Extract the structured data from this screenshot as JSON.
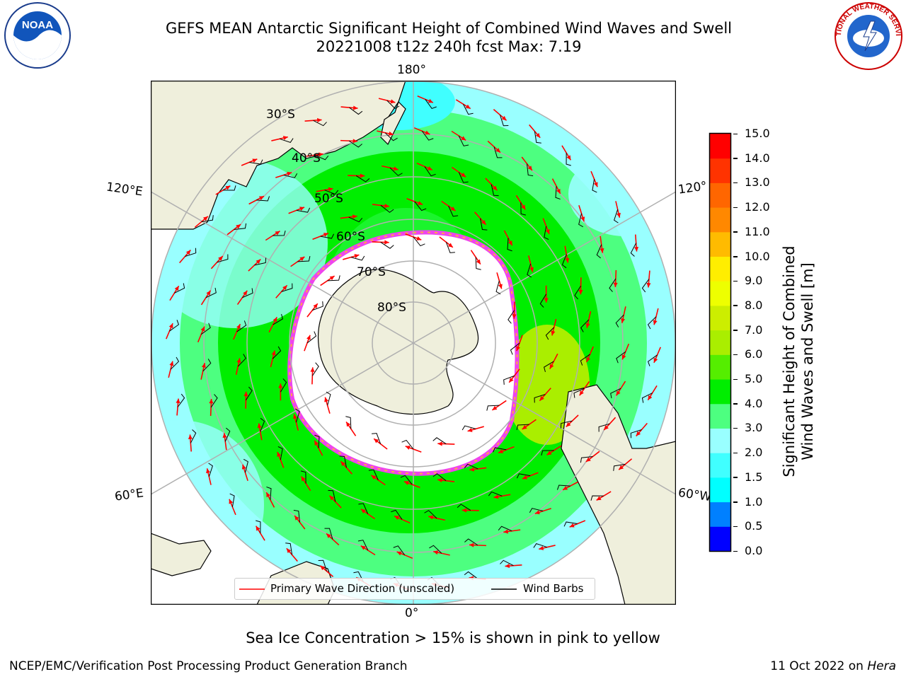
{
  "header": {
    "title_line1": "GEFS MEAN Antarctic Significant Height of Combined Wind Waves and Swell",
    "title_line2": "20221008 t12z 240h fcst   Max: 7.19"
  },
  "logos": {
    "left": {
      "name": "noaa-logo",
      "text": "NOAA"
    },
    "right": {
      "name": "national-weather-service-logo",
      "text": "NATIONAL WEATHER SERVICE"
    }
  },
  "map": {
    "projection": "south-polar-stereographic",
    "lon_labels": {
      "top": "180°",
      "bottom": "0°",
      "left_upper": "120°E",
      "left_lower": "60°E",
      "right_upper": "120°",
      "right_lower": "60°W"
    },
    "lat_labels": [
      "30°S",
      "40°S",
      "50°S",
      "60°S",
      "70°S",
      "80°S"
    ],
    "colors": {
      "land": "#efefdc",
      "ocean_low": "#99ffff",
      "ocean_mid": "#4dff80",
      "ocean_high": "#00ee00",
      "ice": "#ffffff",
      "ice_edge": "#ee44ee",
      "grid": "#b0b0b0"
    }
  },
  "legend": {
    "wave_direction_label": "Primary Wave Direction (unscaled)",
    "wind_barbs_label": "Wind Barbs",
    "wave_color": "#ff0000",
    "barb_color": "#000000"
  },
  "colorbar": {
    "label_line1": "Significant Height of Combined",
    "label_line2": "Wind Waves and Swell [m]",
    "ticks": [
      "0.0",
      "0.5",
      "1.0",
      "1.5",
      "2.0",
      "3.0",
      "4.0",
      "5.0",
      "6.0",
      "7.0",
      "8.0",
      "9.0",
      "10.0",
      "11.0",
      "12.0",
      "13.0",
      "14.0",
      "15.0"
    ],
    "colors": [
      "#0000ff",
      "#0080ff",
      "#00ffff",
      "#40ffff",
      "#99ffff",
      "#4dff80",
      "#00ee00",
      "#55ee00",
      "#aaee00",
      "#ccee00",
      "#eeff00",
      "#ffee00",
      "#ffbb00",
      "#ff8800",
      "#ff6600",
      "#ff3300",
      "#ff0000"
    ]
  },
  "caption": "Sea Ice Concentration > 15% is shown in pink to yellow",
  "footer": {
    "left": "NCEP/EMC/Verification Post Processing Product Generation Branch",
    "right_date": "11 Oct 2022 on ",
    "right_host": "Hera"
  }
}
